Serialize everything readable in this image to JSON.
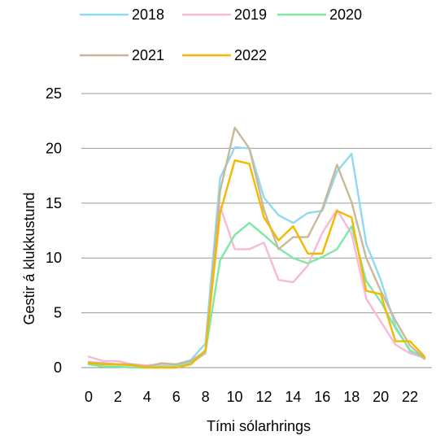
{
  "chart_data": {
    "type": "line",
    "x": [
      0,
      1,
      2,
      3,
      4,
      5,
      6,
      7,
      8,
      9,
      10,
      11,
      12,
      13,
      14,
      15,
      16,
      17,
      18,
      19,
      20,
      21,
      22,
      23
    ],
    "x_tick_labels": [
      "0",
      "2",
      "4",
      "6",
      "8",
      "10",
      "12",
      "14",
      "16",
      "18",
      "20",
      "22"
    ],
    "y_tick_labels": [
      "0",
      "5",
      "10",
      "15",
      "20",
      "25"
    ],
    "xlabel": "Tími sólarhrings",
    "ylabel": "Gestir á klukkustund",
    "ylim": [
      0,
      25
    ],
    "grid": "horizontal",
    "legend_position": "top",
    "series": [
      {
        "name": "2018",
        "color": "#8fd9f2",
        "values": [
          0.5,
          0.4,
          0.3,
          0.3,
          0.2,
          0.3,
          0.3,
          0.7,
          2.2,
          17.3,
          20.1,
          20.0,
          15.5,
          13.9,
          13.2,
          14.1,
          14.3,
          17.9,
          19.5,
          11.3,
          8.0,
          3.8,
          1.5,
          0.9
        ]
      },
      {
        "name": "2019",
        "color": "#f9b8d8",
        "values": [
          1.0,
          0.6,
          0.6,
          0.3,
          0.2,
          0.3,
          0.3,
          0.4,
          1.3,
          14.7,
          10.8,
          10.8,
          11.4,
          8.0,
          7.8,
          9.3,
          12.3,
          14.4,
          12.2,
          6.3,
          4.2,
          2.1,
          1.3,
          0.9
        ]
      },
      {
        "name": "2020",
        "color": "#7ee8a4",
        "values": [
          0.3,
          0.1,
          0.1,
          0.0,
          0.0,
          0.1,
          0.1,
          0.4,
          1.4,
          9.8,
          12.1,
          13.2,
          12.1,
          10.9,
          10.0,
          9.5,
          10.1,
          10.8,
          12.9,
          7.9,
          6.0,
          3.6,
          1.6,
          0.8
        ]
      },
      {
        "name": "2021",
        "color": "#c8b898",
        "values": [
          0.5,
          0.4,
          0.3,
          0.3,
          0.1,
          0.4,
          0.3,
          0.6,
          1.5,
          16.1,
          21.9,
          20.0,
          14.4,
          10.8,
          11.9,
          11.9,
          14.5,
          18.5,
          15.1,
          10.0,
          7.0,
          4.3,
          2.0,
          0.8
        ]
      },
      {
        "name": "2022",
        "color": "#f5b800",
        "values": [
          0.4,
          0.3,
          0.3,
          0.2,
          0.0,
          0.0,
          0.0,
          0.3,
          1.6,
          14.1,
          18.9,
          18.6,
          13.7,
          11.6,
          12.9,
          10.4,
          10.4,
          14.3,
          13.7,
          7.0,
          6.7,
          2.4,
          2.4,
          1.0
        ]
      }
    ]
  }
}
